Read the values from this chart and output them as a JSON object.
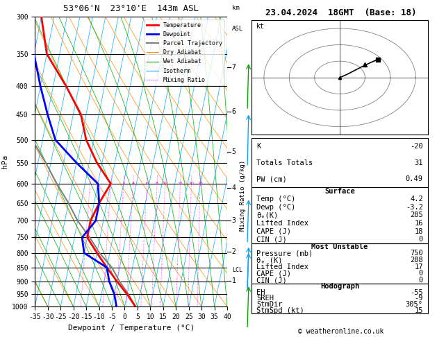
{
  "title_left": "53°06'N  23°10'E  143m ASL",
  "title_right": "23.04.2024  18GMT  (Base: 18)",
  "ylabel_left": "hPa",
  "xlabel": "Dewpoint / Temperature (°C)",
  "mixing_ratio_ylabel": "Mixing Ratio (g/kg)",
  "pressure_levels": [
    300,
    350,
    400,
    450,
    500,
    550,
    600,
    650,
    700,
    750,
    800,
    850,
    900,
    950,
    1000
  ],
  "temp_profile_p": [
    1000,
    950,
    900,
    850,
    800,
    750,
    700,
    650,
    600,
    550,
    500,
    450,
    400,
    350,
    300
  ],
  "temp_profile_T": [
    4.2,
    0,
    -5,
    -10,
    -15,
    -20,
    -20,
    -18,
    -15,
    -22,
    -28,
    -32,
    -40,
    -50,
    -55
  ],
  "dewp_profile_p": [
    1000,
    950,
    900,
    850,
    800,
    750,
    700,
    650,
    600,
    550,
    500,
    450,
    400,
    350,
    300
  ],
  "dewp_profile_T": [
    -3.2,
    -5,
    -8,
    -10,
    -20,
    -22,
    -18,
    -18,
    -20,
    -30,
    -40,
    -45,
    -50,
    -55,
    -58
  ],
  "parcel_profile_p": [
    1000,
    950,
    900,
    850,
    800,
    750,
    700,
    650,
    600,
    550,
    500,
    450,
    400,
    350,
    300
  ],
  "parcel_profile_T": [
    4.2,
    0.5,
    -4,
    -8,
    -14,
    -19,
    -25,
    -30,
    -36,
    -42,
    -49,
    -56,
    -63,
    -72,
    -80
  ],
  "LCL_p": 860,
  "xmin": -35,
  "xmax": 40,
  "skew_factor": 22.5,
  "legend_labels": [
    "Temperature",
    "Dewpoint",
    "Parcel Trajectory",
    "Dry Adiabat",
    "Wet Adiabat",
    "Isotherm",
    "Mixing Ratio"
  ],
  "legend_colors": [
    "#ff0000",
    "#0000ff",
    "#808080",
    "#ff8c00",
    "#00aa00",
    "#00aaff",
    "#ff00ff"
  ],
  "info_K": -20,
  "info_TT": 31,
  "info_PW": 0.49,
  "surf_temp": 4.2,
  "surf_dewp": -3.2,
  "surf_theta_e": 285,
  "surf_li": 16,
  "surf_cape": 18,
  "surf_cin": 0,
  "mu_pressure": 750,
  "mu_theta_e": 288,
  "mu_li": 17,
  "mu_cape": 0,
  "mu_cin": 0,
  "hodo_EH": -55,
  "hodo_SREH": -9,
  "hodo_StmDir": 305,
  "hodo_StmSpd": 15,
  "copyright": "© weatheronline.co.uk",
  "bg_color": "#ffffff",
  "mixing_ratio_values": [
    1,
    2,
    3,
    4,
    6,
    8,
    10,
    15,
    20,
    25
  ],
  "km_ticks": [
    1,
    2,
    3,
    4,
    5,
    6,
    7
  ],
  "km_pressures": [
    898,
    795,
    700,
    610,
    525,
    445,
    370
  ]
}
